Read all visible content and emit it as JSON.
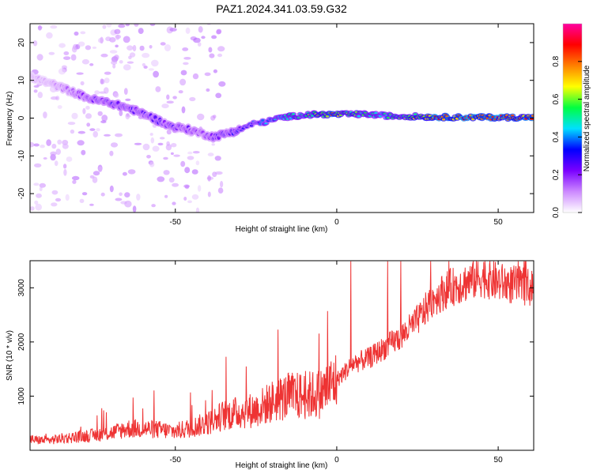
{
  "figure_title": "PAZ1.2024.341.03.59.G32",
  "chart_data": [
    {
      "type": "heatmap",
      "xlabel": "Height of straight line (km)",
      "ylabel": "Frequency (Hz)",
      "xlim": [
        -95,
        61
      ],
      "ylim": [
        -25,
        25
      ],
      "xticks": [
        -50,
        0,
        50
      ],
      "xtick_labels": [
        "-50",
        "0",
        "50"
      ],
      "yticks": [
        -20,
        -10,
        0,
        10,
        20
      ],
      "ytick_labels": [
        "-20",
        "-10",
        "0",
        "10",
        "20"
      ],
      "ridge": {
        "description_values_x": [
          -95,
          -88,
          -82,
          -76,
          -70,
          -64,
          -58,
          -52,
          -46,
          -42,
          -38,
          -34,
          -30,
          -26,
          -22,
          -18,
          -14,
          -10,
          -6,
          -2,
          2,
          6,
          10,
          14,
          18,
          22,
          30,
          40,
          50,
          61
        ],
        "frequency_hz": [
          11,
          9,
          7,
          5,
          4,
          2.5,
          0.5,
          -2,
          -3,
          -4,
          -5,
          -4,
          -3,
          -1.5,
          -1,
          0,
          0.5,
          0.8,
          1,
          1,
          1,
          1,
          1,
          0.7,
          0.5,
          0.5,
          0.3,
          0.2,
          0.2,
          0.2
        ],
        "normalized_amplitude": [
          0.1,
          0.12,
          0.18,
          0.28,
          0.32,
          0.3,
          0.3,
          0.3,
          0.28,
          0.22,
          0.28,
          0.32,
          0.35,
          0.4,
          0.45,
          0.5,
          0.55,
          0.6,
          0.7,
          0.85,
          0.7,
          0.65,
          0.6,
          0.55,
          0.6,
          0.65,
          0.9,
          0.95,
          0.95,
          0.9
        ]
      },
      "colorbar": {
        "label": "Normalized spectral amplitude",
        "range": [
          0,
          1
        ],
        "ticks": [
          0.0,
          0.2,
          0.4,
          0.6,
          0.8
        ],
        "tick_labels": [
          "0.0",
          "0.2",
          "0.4",
          "0.6",
          "0.8"
        ],
        "colors": [
          "#ffffff",
          "#cc88ff",
          "#7a00ff",
          "#0000ff",
          "#00e0ff",
          "#00ff40",
          "#ffff00",
          "#ff8000",
          "#ff0000",
          "#ff00a0"
        ]
      }
    },
    {
      "type": "line",
      "xlabel": "Height of straight line (km)",
      "ylabel": "SNR (10 * v/v)",
      "xlim": [
        -95,
        61
      ],
      "ylim": [
        0,
        3500
      ],
      "xticks": [
        -50,
        0,
        50
      ],
      "xtick_labels": [
        "-50",
        "0",
        "50"
      ],
      "yticks": [
        1000,
        2000,
        3000
      ],
      "ytick_labels": [
        "1000",
        "2000",
        "3000"
      ],
      "color": "#ee3333",
      "x": [
        -95,
        -90,
        -85,
        -80,
        -75,
        -70,
        -65,
        -60,
        -55,
        -50,
        -45,
        -40,
        -35,
        -30,
        -25,
        -20,
        -15,
        -10,
        -5,
        0,
        5,
        10,
        15,
        20,
        25,
        30,
        35,
        40,
        45,
        50,
        55,
        61
      ],
      "y": [
        200,
        180,
        220,
        250,
        280,
        320,
        400,
        400,
        380,
        350,
        420,
        500,
        650,
        700,
        750,
        900,
        1000,
        1000,
        1050,
        1300,
        1600,
        1700,
        1900,
        2100,
        2400,
        2800,
        3000,
        3100,
        3200,
        3100,
        3050,
        3000
      ]
    }
  ]
}
